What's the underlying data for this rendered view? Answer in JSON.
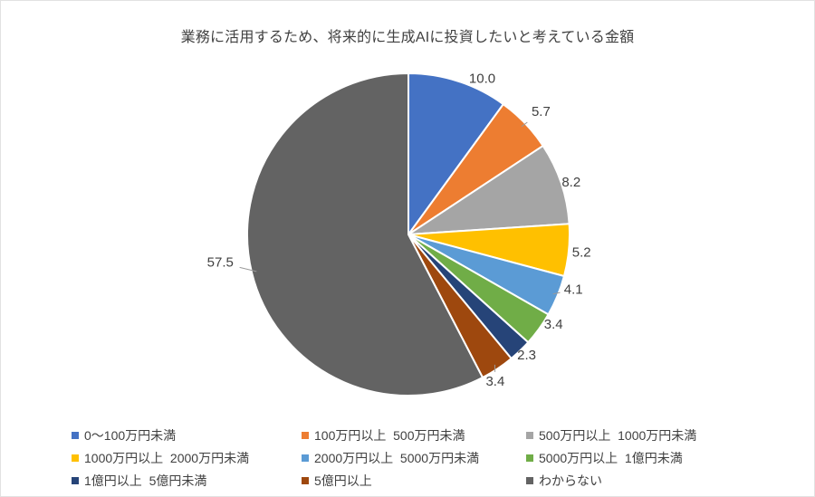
{
  "chart_data": {
    "type": "pie",
    "title": "業務に活用するため、将来的に生成AIに投資したいと考えている金額",
    "legend_position": "bottom",
    "start_angle_deg": 0,
    "direction": "clockwise",
    "slices": [
      {
        "label": "0〜100万円未満",
        "value": 10.0,
        "value_label": "10.0",
        "color": "#4472C4"
      },
      {
        "label": "100万円以上  500万円未満",
        "value": 5.7,
        "value_label": "5.7",
        "color": "#ED7D31"
      },
      {
        "label": "500万円以上  1000万円未満",
        "value": 8.2,
        "value_label": "8.2",
        "color": "#A5A5A5"
      },
      {
        "label": "1000万円以上  2000万円未満",
        "value": 5.2,
        "value_label": "5.2",
        "color": "#FFC000"
      },
      {
        "label": "2000万円以上  5000万円未満",
        "value": 4.1,
        "value_label": "4.1",
        "color": "#5B9BD5"
      },
      {
        "label": "5000万円以上  1億円未満",
        "value": 3.4,
        "value_label": "3.4",
        "color": "#70AD47"
      },
      {
        "label": "1億円以上  5億円未満",
        "value": 2.3,
        "value_label": "2.3",
        "color": "#264478"
      },
      {
        "label": "5億円以上",
        "value": 3.4,
        "value_label": "3.4",
        "color": "#9E480E"
      },
      {
        "label": "わからない",
        "value": 57.5,
        "value_label": "57.5",
        "color": "#636363"
      }
    ],
    "colors": {
      "label_text": "#404040",
      "title_text": "#404040",
      "legend_text": "#404040",
      "leader_line": "#9A9A9A",
      "slice_separator": "#FFFFFF",
      "background": "#FFFFFF",
      "border": "#E2E2E2"
    }
  }
}
